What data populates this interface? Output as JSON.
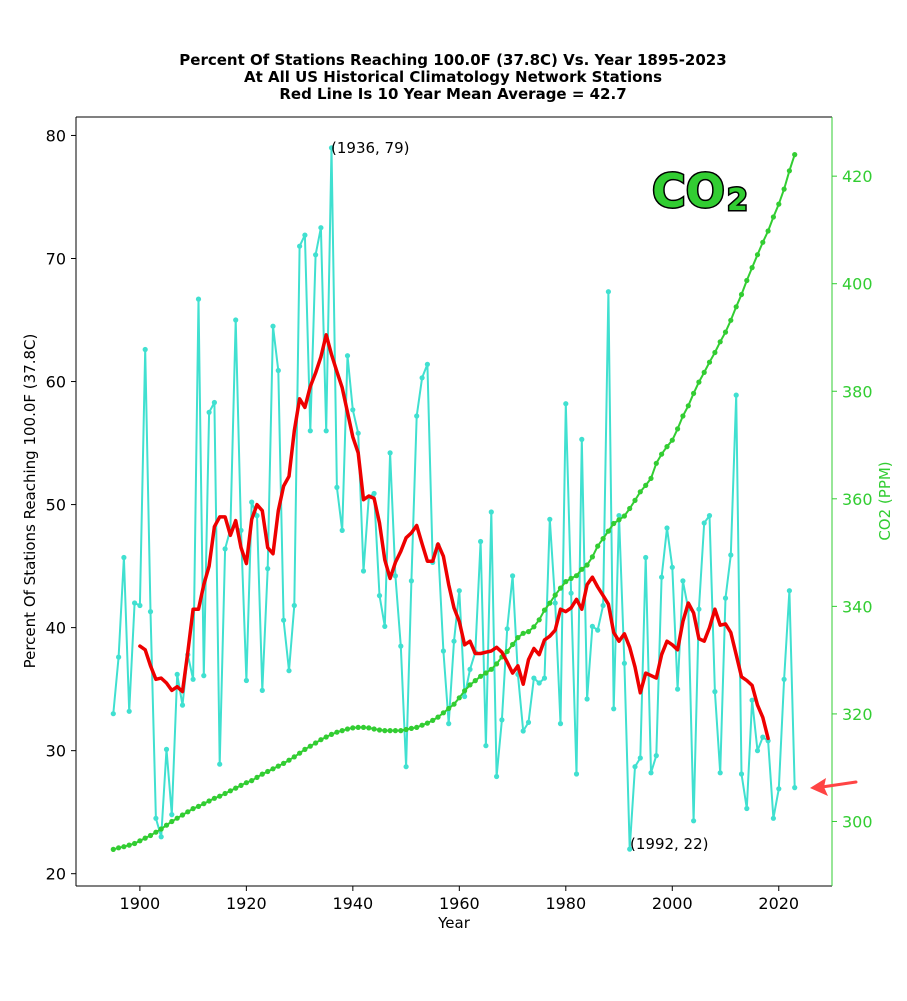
{
  "chart_data": {
    "type": "line",
    "title_lines": [
      "Percent Of Stations Reaching 100.0F (37.8C) Vs. Year 1895-2023",
      "At All US Historical Climatology Network Stations",
      "Red Line Is 10 Year Mean  Average = 42.7"
    ],
    "xlabel": "Year",
    "ylabel": "Percent Of Stations Reaching 100.0F (37.8C)",
    "y2label": "CO2 (PPM)",
    "xlim": [
      1888,
      2030
    ],
    "ylim": [
      19,
      81.5
    ],
    "y2lim": [
      288,
      431
    ],
    "x_ticks": [
      1900,
      1920,
      1940,
      1960,
      1980,
      2000,
      2020
    ],
    "y_ticks": [
      20,
      30,
      40,
      50,
      60,
      70,
      80
    ],
    "y2_ticks": [
      300,
      320,
      340,
      360,
      380,
      400,
      420
    ],
    "colors": {
      "percent": "#40e0d0",
      "mean": "#ee0000",
      "co2": "#32cd32",
      "arrow": "#ff4444"
    },
    "series": [
      {
        "name": "Percent of stations",
        "x_start": 1895,
        "values": [
          33,
          37.6,
          45.7,
          33.2,
          42,
          41.8,
          62.6,
          41.3,
          24.5,
          23,
          30.1,
          24.8,
          36.2,
          33.7,
          37.8,
          35.8,
          66.7,
          36.1,
          57.5,
          58.3,
          28.9,
          46.4,
          48,
          65,
          47.9,
          35.7,
          50.2,
          49.1,
          34.9,
          44.8,
          64.5,
          60.9,
          40.6,
          36.5,
          41.8,
          71,
          71.9,
          56,
          70.3,
          72.5,
          56,
          79,
          51.4,
          47.9,
          62.1,
          57.7,
          55.8,
          44.6,
          50.6,
          50.9,
          42.6,
          40.1,
          54.2,
          44.2,
          38.5,
          28.7,
          43.8,
          57.2,
          60.3,
          61.4,
          45.3,
          46.7,
          38.1,
          32.2,
          38.9,
          43,
          34.4,
          36.6,
          38,
          47,
          30.4,
          49.4,
          27.9,
          32.5,
          39.9,
          44.2,
          36.2,
          31.6,
          32.3,
          35.9,
          35.5,
          35.9,
          48.8,
          42,
          32.2,
          58.2,
          42.8,
          28.1,
          55.3,
          34.2,
          40.1,
          39.8,
          41.8,
          67.3,
          33.4,
          49.1,
          37.1,
          22,
          28.7,
          29.4,
          45.7,
          28.2,
          29.6,
          44.1,
          48.1,
          44.9,
          35,
          43.8,
          41.5,
          24.3,
          41.5,
          48.5,
          49.1,
          34.8,
          28.2,
          42.4,
          45.9,
          58.9,
          28.1,
          25.3,
          34.1,
          30,
          31.1,
          30.8,
          24.5,
          26.9,
          35.8,
          43,
          27
        ]
      },
      {
        "name": "10 Year Mean",
        "x_start": 1900,
        "values": [
          38.5,
          38.2,
          36.9,
          35.8,
          35.9,
          35.5,
          34.9,
          35.2,
          34.8,
          38,
          41.5,
          41.5,
          43.5,
          45,
          48.2,
          49,
          49,
          47.5,
          48.7,
          46.5,
          45.2,
          48.8,
          50,
          49.5,
          46.5,
          46,
          49.5,
          51.5,
          52.3,
          56,
          58.6,
          57.9,
          59.6,
          60.7,
          62,
          63.8,
          62.2,
          60.8,
          59.5,
          57.5,
          55.5,
          54.2,
          50.4,
          50.7,
          50.5,
          48.5,
          45.5,
          44,
          45.3,
          46.2,
          47.3,
          47.7,
          48.3,
          46.8,
          45.4,
          45.4,
          46.8,
          45.8,
          43.5,
          41.6,
          40.5,
          38.6,
          38.9,
          37.9,
          37.9,
          38,
          38.1,
          38.4,
          38,
          37.2,
          36.3,
          36.9,
          35.4,
          37.4,
          38.3,
          37.8,
          39,
          39.3,
          39.8,
          41.5,
          41.3,
          41.6,
          42.3,
          41.5,
          43.5,
          44.1,
          43.3,
          42.6,
          41.9,
          39.6,
          38.9,
          39.5,
          38.4,
          36.8,
          34.7,
          36.3,
          36.1,
          35.9,
          37.8,
          38.9,
          38.6,
          38.2,
          40.5,
          42,
          41.2,
          39.1,
          38.9,
          40,
          41.5,
          40.2,
          40.3,
          39.6,
          37.8,
          36,
          35.7,
          35.3,
          33.7,
          32.7,
          31
        ]
      },
      {
        "name": "CO2",
        "x_start": 1895,
        "values": [
          294.8,
          295.1,
          295.3,
          295.6,
          295.9,
          296.4,
          296.9,
          297.4,
          298,
          298.6,
          299.3,
          300,
          300.6,
          301.2,
          301.8,
          302.4,
          302.8,
          303.3,
          303.8,
          304.3,
          304.7,
          305.2,
          305.7,
          306.2,
          306.7,
          307.2,
          307.6,
          308.2,
          308.8,
          309.3,
          309.8,
          310.3,
          310.8,
          311.4,
          312,
          312.7,
          313.4,
          314,
          314.6,
          315.2,
          315.7,
          316.2,
          316.6,
          316.9,
          317.2,
          317.4,
          317.5,
          317.5,
          317.4,
          317.2,
          317,
          316.9,
          316.9,
          316.9,
          316.9,
          317.1,
          317.3,
          317.5,
          317.9,
          318.3,
          318.8,
          319.4,
          320.2,
          321,
          321.8,
          323,
          324.3,
          325.4,
          326.2,
          327,
          327.6,
          328.3,
          329.3,
          330.6,
          331.6,
          332.9,
          334.2,
          335,
          335.3,
          336.2,
          337.5,
          339.3,
          340.6,
          342.1,
          343.4,
          344.6,
          345.2,
          345.7,
          346.9,
          347.7,
          349.2,
          351.2,
          352.6,
          354,
          355.4,
          356.1,
          356.8,
          358.2,
          359.7,
          361.3,
          362.5,
          363.8,
          366.6,
          368.3,
          369.7,
          370.9,
          373,
          375.4,
          377.3,
          379.6,
          381.7,
          383.5,
          385.4,
          387.2,
          389.2,
          391,
          393.2,
          395.7,
          398,
          400.6,
          403,
          405.4,
          407.7,
          409.8,
          412.4,
          414.8,
          417.6,
          421,
          424
        ]
      }
    ],
    "annotations": [
      "(1936, 79)",
      "(1992, 22)"
    ],
    "logo": {
      "main": "CO",
      "sub": "2"
    }
  }
}
